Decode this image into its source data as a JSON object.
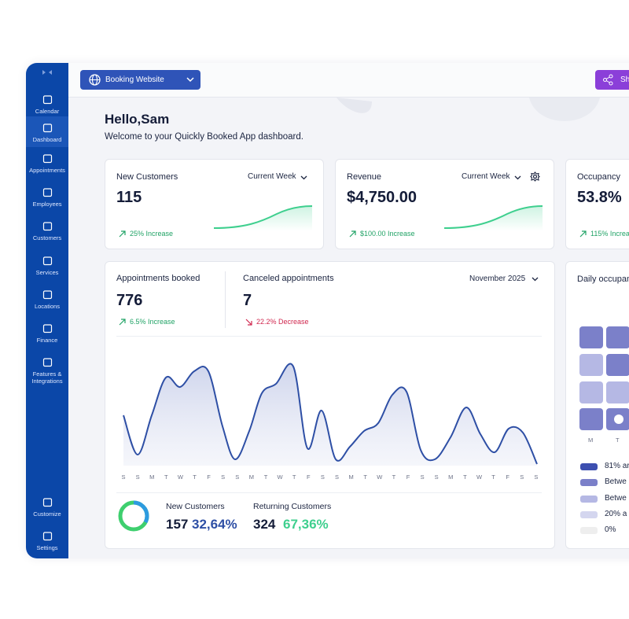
{
  "sidebar": {
    "items": [
      "Calendar",
      "Dashboard",
      "Appointments",
      "Employees",
      "Customers",
      "Services",
      "Locations",
      "Finance",
      "Features & Integrations"
    ],
    "bottom": [
      "Customize",
      "Settings"
    ]
  },
  "topbar": {
    "site_button": "Booking Website",
    "share_button": "Sh"
  },
  "header": {
    "greeting": "Hello,Sam",
    "welcome": "Welcome to your Quickly Booked App dashboard."
  },
  "cards": [
    {
      "title": "New Customers",
      "period": "Current Week",
      "value": "115",
      "change": "25% Increase"
    },
    {
      "title": "Revenue",
      "period": "Current Week",
      "value": "$4,750.00",
      "change": "$100.00 Increase"
    },
    {
      "title": "Occupancy",
      "value": "53.8%",
      "change": "115% Increa"
    }
  ],
  "appointments": {
    "booked_title": "Appointments booked",
    "booked_value": "776",
    "booked_change": "6.5% Increase",
    "canceled_title": "Canceled appointments",
    "canceled_value": "7",
    "canceled_change": "22.2% Decrease",
    "period": "November 2025",
    "days": [
      "S",
      "S",
      "M",
      "T",
      "W",
      "T",
      "F",
      "S",
      "S",
      "M",
      "T",
      "W",
      "T",
      "F",
      "S",
      "S",
      "M",
      "T",
      "W",
      "T",
      "F",
      "S",
      "S",
      "M",
      "T",
      "W",
      "T",
      "F",
      "S",
      "S"
    ],
    "new_customers": {
      "label": "New Customers",
      "count": "157",
      "share": "32,64%"
    },
    "returning_customers": {
      "label": "Returning Customers",
      "count": "324",
      "share": "67,36%"
    }
  },
  "occupancy_panel": {
    "title": "Daily occupan",
    "columns": [
      "M",
      "T"
    ],
    "legend": [
      "81% ar",
      "Betwe",
      "Betwe",
      "20% a",
      "0%"
    ]
  }
}
